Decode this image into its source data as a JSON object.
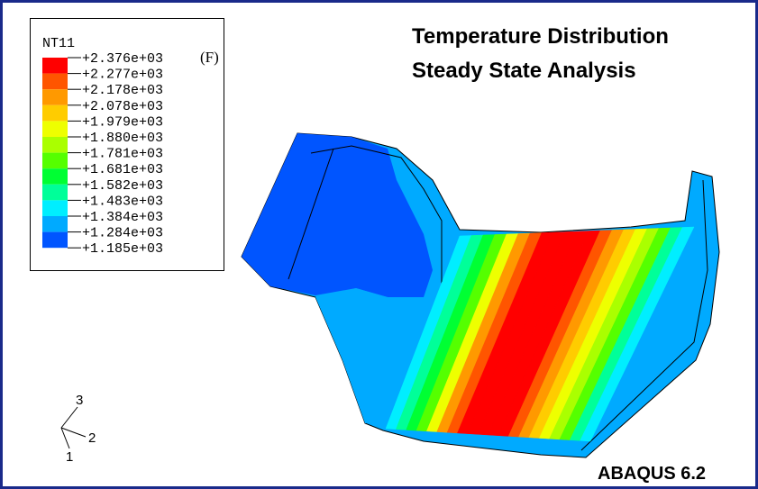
{
  "legend": {
    "title": "NT11",
    "entries": [
      "+2.376e+03",
      "+2.277e+03",
      "+2.178e+03",
      "+2.078e+03",
      "+1.979e+03",
      "+1.880e+03",
      "+1.781e+03",
      "+1.681e+03",
      "+1.582e+03",
      "+1.483e+03",
      "+1.384e+03",
      "+1.284e+03",
      "+1.185e+03"
    ],
    "max_flag": "(F)",
    "colors": [
      "#ff0000",
      "#ff5500",
      "#ff9900",
      "#ffcc00",
      "#eeff00",
      "#aaff00",
      "#55ff00",
      "#00ff33",
      "#00ff99",
      "#00eeff",
      "#00aaff",
      "#0055ff"
    ]
  },
  "title": {
    "lines": [
      "Temperature Distribution",
      "Steady State Analysis"
    ]
  },
  "watermark": "ABAQUS 6.2",
  "triad": {
    "labels": [
      "3",
      "2",
      "1"
    ]
  }
}
